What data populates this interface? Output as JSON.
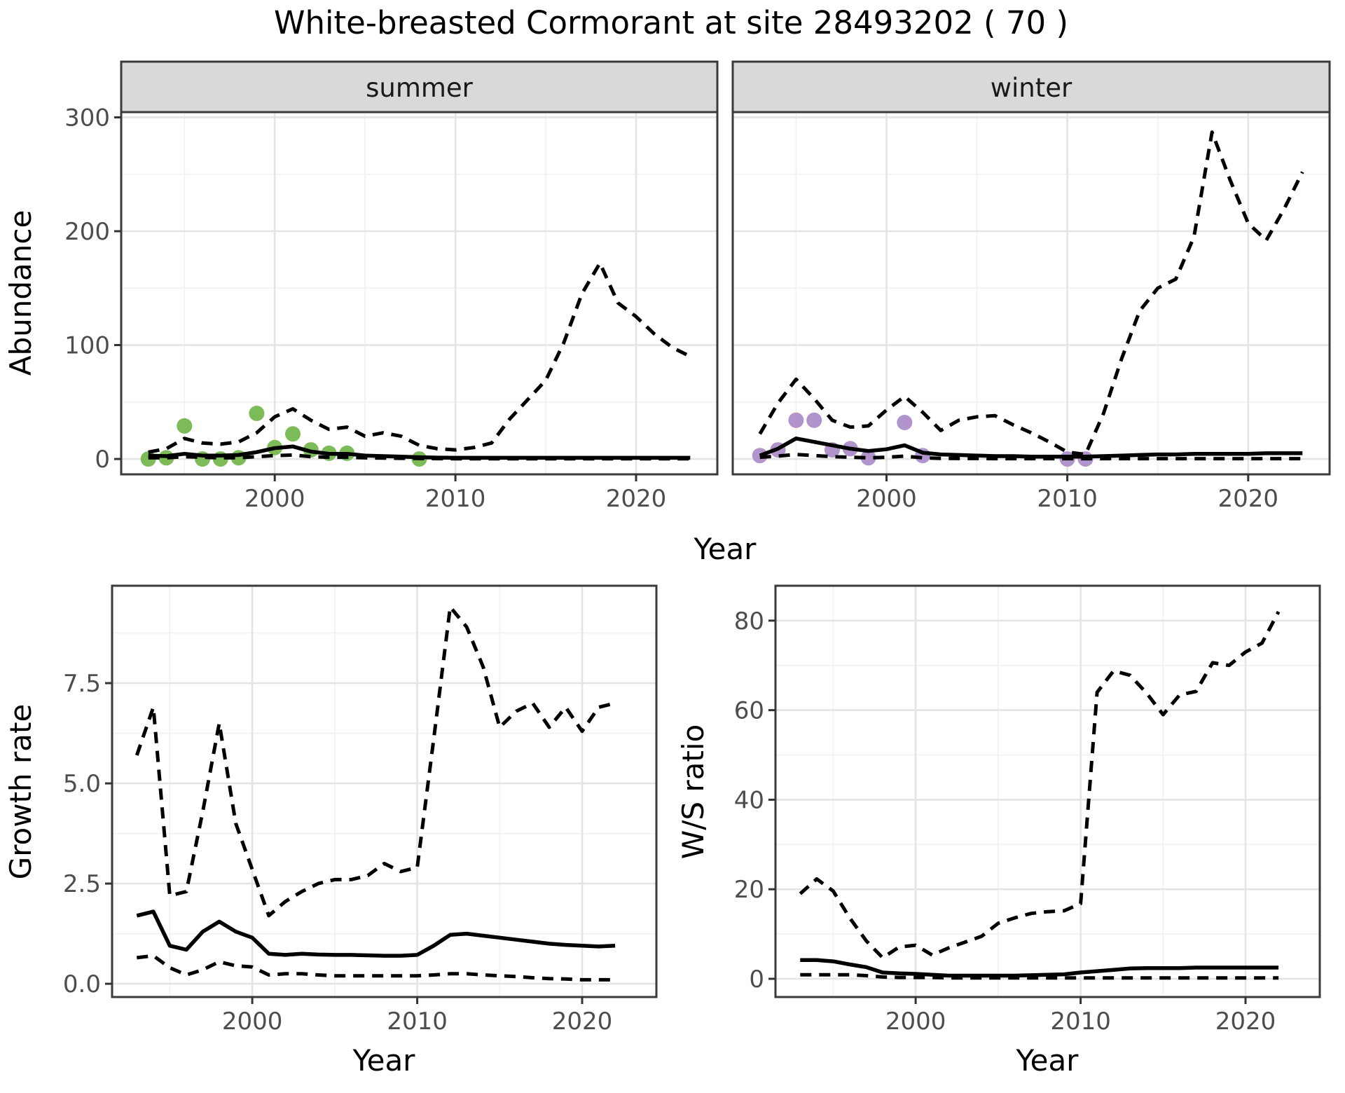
{
  "title": "White-breasted Cormorant at site 28493202 ( 70 )",
  "labels": {
    "x_top": "Year",
    "x_bottom_left": "Year",
    "x_bottom_right": "Year"
  },
  "colors": {
    "observed_summer": "#7cbb58",
    "observed_winter": "#b294cd",
    "line": "#000000",
    "strip_fill": "#d9d9d9",
    "grid_major": "#e4e4e4",
    "tick_text": "#4d4d4d"
  },
  "chart_data": [
    {
      "id": "abundance-summer",
      "type": "line",
      "facet_label": "summer",
      "ylabel": "Abundance",
      "xlim": [
        1991.5,
        2024.5
      ],
      "ylim": [
        -13.5,
        304.6
      ],
      "xticks": [
        2000,
        2010,
        2020
      ],
      "xtick_labels": [
        "2000",
        "2010",
        "2020"
      ],
      "xminor": [
        1995,
        2005,
        2015
      ],
      "yticks": [
        0,
        100,
        200,
        300
      ],
      "ytick_labels": [
        "0",
        "100",
        "200",
        "300"
      ],
      "yminor": [
        50,
        150,
        250
      ],
      "years": [
        1993,
        1994,
        1995,
        1996,
        1997,
        1998,
        1999,
        2000,
        2001,
        2002,
        2003,
        2004,
        2005,
        2006,
        2007,
        2008,
        2009,
        2010,
        2011,
        2012,
        2013,
        2014,
        2015,
        2016,
        2017,
        2018,
        2019,
        2020,
        2021,
        2022,
        2023
      ],
      "series": [
        {
          "name": "median",
          "style": "solid",
          "values": [
            3,
            2.5,
            4.5,
            3,
            3,
            3.5,
            6,
            9.5,
            11,
            6.5,
            4.5,
            4.5,
            3,
            2.5,
            2,
            1.5,
            1.2,
            1,
            1,
            1,
            1,
            1,
            1,
            1,
            1,
            1,
            1,
            1,
            1,
            1,
            1
          ]
        },
        {
          "name": "upper-95ci",
          "style": "dashed",
          "values": [
            6,
            9,
            18,
            14,
            13,
            15,
            23,
            37,
            44,
            34,
            26,
            28,
            20,
            23,
            20,
            12,
            9,
            8,
            10,
            14,
            35,
            52,
            69,
            102,
            145,
            172,
            137,
            125,
            110,
            98,
            90
          ]
        },
        {
          "name": "lower-95ci",
          "style": "dashed",
          "values": [
            1,
            1,
            2,
            1.5,
            1,
            1,
            2,
            3,
            3.5,
            2,
            1.5,
            1.5,
            1,
            0.8,
            0.6,
            0.4,
            0.3,
            0.2,
            0.2,
            0.2,
            0.2,
            0.2,
            0.2,
            0.2,
            0.2,
            0.2,
            0.2,
            0.2,
            0.2,
            0.2,
            0.2
          ]
        }
      ],
      "observations": {
        "name": "observed-counts-summer",
        "color": "#7cbb58",
        "points": [
          [
            1993,
            0
          ],
          [
            1994,
            1
          ],
          [
            1995,
            29
          ],
          [
            1996,
            0
          ],
          [
            1997,
            0
          ],
          [
            1998,
            1
          ],
          [
            1999,
            40
          ],
          [
            2000,
            10
          ],
          [
            2001,
            22
          ],
          [
            2002,
            8
          ],
          [
            2003,
            5
          ],
          [
            2004,
            5
          ],
          [
            2008,
            0
          ]
        ]
      }
    },
    {
      "id": "abundance-winter",
      "type": "line",
      "facet_label": "winter",
      "ylabel": "",
      "xlim": [
        1991.5,
        2024.5
      ],
      "ylim": [
        -13.5,
        304.6
      ],
      "xticks": [
        2000,
        2010,
        2020
      ],
      "xtick_labels": [
        "2000",
        "2010",
        "2020"
      ],
      "xminor": [
        1995,
        2005,
        2015
      ],
      "yticks": [
        0,
        100,
        200,
        300
      ],
      "ytick_labels": null,
      "yminor": [
        50,
        150,
        250
      ],
      "years": [
        1993,
        1994,
        1995,
        1996,
        1997,
        1998,
        1999,
        2000,
        2001,
        2002,
        2003,
        2004,
        2005,
        2006,
        2007,
        2008,
        2009,
        2010,
        2011,
        2012,
        2013,
        2014,
        2015,
        2016,
        2017,
        2018,
        2019,
        2020,
        2021,
        2022,
        2023
      ],
      "series": [
        {
          "name": "median",
          "style": "solid",
          "values": [
            3,
            9,
            18,
            15,
            12,
            9,
            7,
            8.5,
            12,
            5.5,
            4,
            3.5,
            3,
            2.5,
            2.5,
            2,
            2,
            2,
            2,
            2.5,
            3,
            3.5,
            4,
            4,
            4.5,
            4.5,
            4.5,
            4.5,
            5,
            5,
            5
          ]
        },
        {
          "name": "upper-95ci",
          "style": "dashed",
          "values": [
            22,
            49,
            70,
            53,
            34,
            28,
            29,
            43,
            55,
            41,
            25,
            34,
            37,
            38,
            30,
            23,
            15,
            6,
            4,
            40,
            88,
            130,
            150,
            158,
            195,
            287,
            245,
            207,
            192,
            220,
            252
          ]
        },
        {
          "name": "lower-95ci",
          "style": "dashed",
          "values": [
            1.5,
            2.5,
            4,
            3,
            2,
            1.5,
            1,
            1.5,
            2.5,
            1,
            0.5,
            0.4,
            0.4,
            0.3,
            0.3,
            0.3,
            0.3,
            0.3,
            0.3,
            0.3,
            0.3,
            0.3,
            0.3,
            0.3,
            0.3,
            0.3,
            0.3,
            0.3,
            0.3,
            0.3,
            0.3
          ]
        }
      ],
      "observations": {
        "name": "observed-counts-winter",
        "color": "#b294cd",
        "points": [
          [
            1993,
            3
          ],
          [
            1994,
            8
          ],
          [
            1995,
            34
          ],
          [
            1996,
            34
          ],
          [
            1997,
            8
          ],
          [
            1998,
            9
          ],
          [
            1999,
            1
          ],
          [
            2001,
            32
          ],
          [
            2002,
            3
          ],
          [
            2010,
            0
          ],
          [
            2011,
            0
          ]
        ]
      }
    },
    {
      "id": "growth-rate",
      "type": "line",
      "facet_label": null,
      "ylabel": "Growth rate",
      "xlabel": "Year",
      "xlim": [
        1991.5,
        2024.5
      ],
      "ylim": [
        -0.33,
        9.93
      ],
      "xticks": [
        2000,
        2010,
        2020
      ],
      "xtick_labels": [
        "2000",
        "2010",
        "2020"
      ],
      "xminor": [
        1995,
        2005,
        2015
      ],
      "yticks": [
        0,
        2.5,
        5,
        7.5
      ],
      "ytick_labels": [
        "0.0",
        "2.5",
        "5.0",
        "7.5"
      ],
      "yminor": [
        1.25,
        3.75,
        6.25,
        8.75
      ],
      "years": [
        1993,
        1994,
        1995,
        1996,
        1997,
        1998,
        1999,
        2000,
        2001,
        2002,
        2003,
        2004,
        2005,
        2006,
        2007,
        2008,
        2009,
        2010,
        2011,
        2012,
        2013,
        2014,
        2015,
        2016,
        2017,
        2018,
        2019,
        2020,
        2021,
        2022
      ],
      "series": [
        {
          "name": "median",
          "style": "solid",
          "values": [
            1.7,
            1.8,
            0.95,
            0.85,
            1.3,
            1.55,
            1.3,
            1.15,
            0.75,
            0.72,
            0.75,
            0.73,
            0.72,
            0.72,
            0.71,
            0.7,
            0.7,
            0.72,
            0.95,
            1.22,
            1.25,
            1.2,
            1.15,
            1.1,
            1.05,
            1,
            0.97,
            0.95,
            0.93,
            0.95
          ]
        },
        {
          "name": "upper-95ci",
          "style": "dashed",
          "values": [
            5.7,
            6.9,
            2.2,
            2.3,
            4.3,
            6.5,
            4,
            2.85,
            1.7,
            2.05,
            2.3,
            2.5,
            2.6,
            2.6,
            2.7,
            3,
            2.8,
            2.9,
            6.1,
            9.4,
            8.9,
            7.9,
            6.4,
            6.8,
            7,
            6.4,
            6.9,
            6.3,
            6.9,
            7
          ]
        },
        {
          "name": "lower-95ci",
          "style": "dashed",
          "values": [
            0.65,
            0.7,
            0.4,
            0.22,
            0.35,
            0.55,
            0.45,
            0.42,
            0.22,
            0.25,
            0.25,
            0.22,
            0.2,
            0.2,
            0.2,
            0.2,
            0.2,
            0.2,
            0.22,
            0.25,
            0.25,
            0.22,
            0.2,
            0.18,
            0.15,
            0.13,
            0.12,
            0.1,
            0.1,
            0.1
          ]
        }
      ],
      "observations": null
    },
    {
      "id": "ws-ratio",
      "type": "line",
      "facet_label": null,
      "ylabel": "W/S ratio",
      "xlabel": "Year",
      "xlim": [
        1991.5,
        2024.5
      ],
      "ylim": [
        -4.07,
        87.8
      ],
      "xticks": [
        2000,
        2010,
        2020
      ],
      "xtick_labels": [
        "2000",
        "2010",
        "2020"
      ],
      "xminor": [
        1995,
        2005,
        2015
      ],
      "yticks": [
        0,
        20,
        40,
        60,
        80
      ],
      "ytick_labels": [
        "0",
        "20",
        "40",
        "60",
        "80"
      ],
      "yminor": [
        10,
        30,
        50,
        70
      ],
      "years": [
        1993,
        1994,
        1995,
        1996,
        1997,
        1998,
        1999,
        2000,
        2001,
        2002,
        2003,
        2004,
        2005,
        2006,
        2007,
        2008,
        2009,
        2010,
        2011,
        2012,
        2013,
        2014,
        2015,
        2016,
        2017,
        2018,
        2019,
        2020,
        2021,
        2022
      ],
      "series": [
        {
          "name": "median",
          "style": "solid",
          "values": [
            4.2,
            4.2,
            3.9,
            3.2,
            2.6,
            1.4,
            1.2,
            1.1,
            0.9,
            0.7,
            0.7,
            0.7,
            0.7,
            0.7,
            0.8,
            0.9,
            1,
            1.4,
            1.7,
            2,
            2.3,
            2.4,
            2.4,
            2.4,
            2.5,
            2.5,
            2.5,
            2.5,
            2.5,
            2.5
          ]
        },
        {
          "name": "upper-95ci",
          "style": "dashed",
          "values": [
            19,
            22.3,
            19.6,
            13.6,
            8.5,
            4.7,
            7.1,
            7.5,
            5.3,
            6.9,
            8.2,
            9.5,
            12.4,
            13.6,
            14.6,
            15,
            15.2,
            16.8,
            64,
            68.8,
            67.8,
            63.8,
            59,
            63.4,
            64.2,
            70.6,
            70,
            73,
            75,
            82
          ]
        },
        {
          "name": "lower-95ci",
          "style": "dashed",
          "values": [
            0.9,
            0.9,
            0.9,
            0.9,
            0.7,
            0.4,
            0.3,
            0.3,
            0.3,
            0.2,
            0.2,
            0.2,
            0.2,
            0.2,
            0.2,
            0.2,
            0.2,
            0.2,
            0.2,
            0.2,
            0.2,
            0.2,
            0.2,
            0.2,
            0.2,
            0.2,
            0.2,
            0.2,
            0.2,
            0.2
          ]
        }
      ],
      "observations": null
    }
  ]
}
